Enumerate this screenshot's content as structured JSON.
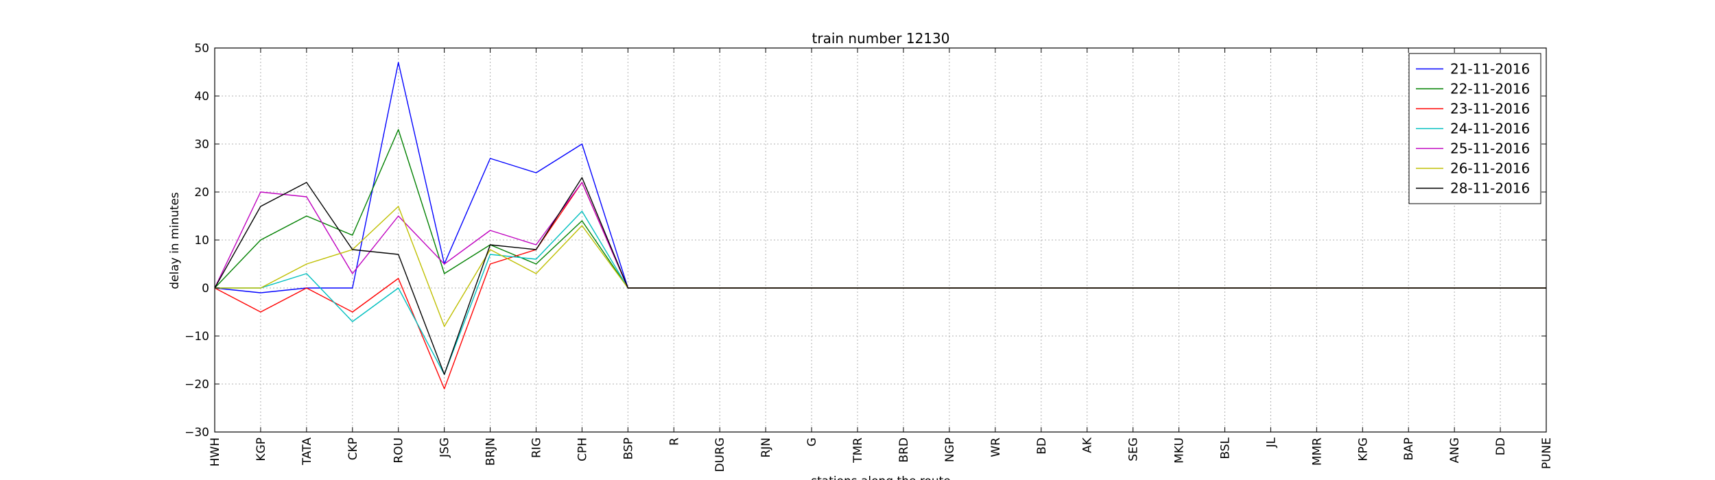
{
  "chart_data": {
    "type": "line",
    "title": "train number 12130",
    "xlabel": "stations along the route",
    "ylabel": "delay in minutes",
    "ylim": [
      -30,
      50
    ],
    "yticks": [
      -30,
      -20,
      -10,
      0,
      10,
      20,
      30,
      40,
      50
    ],
    "grid": true,
    "legend_position": "top-right",
    "categories": [
      "HWH",
      "KGP",
      "TATA",
      "CKP",
      "ROU",
      "JSG",
      "BRJN",
      "RIG",
      "CPH",
      "BSP",
      "R",
      "DURG",
      "RJN",
      "G",
      "TMR",
      "BRD",
      "NGP",
      "WR",
      "BD",
      "AK",
      "SEG",
      "MKU",
      "BSL",
      "JL",
      "MMR",
      "KPG",
      "BAP",
      "ANG",
      "DD",
      "PUNE"
    ],
    "series": [
      {
        "name": "21-11-2016",
        "color": "#0000ff",
        "values": [
          0,
          -1,
          0,
          0,
          47,
          5,
          27,
          24,
          30,
          0,
          0,
          0,
          0,
          0,
          0,
          0,
          0,
          0,
          0,
          0,
          0,
          0,
          0,
          0,
          0,
          0,
          0,
          0,
          0,
          0
        ]
      },
      {
        "name": "22-11-2016",
        "color": "#008000",
        "values": [
          0,
          10,
          15,
          11,
          33,
          3,
          9,
          5,
          14,
          0,
          0,
          0,
          0,
          0,
          0,
          0,
          0,
          0,
          0,
          0,
          0,
          0,
          0,
          0,
          0,
          0,
          0,
          0,
          0,
          0
        ]
      },
      {
        "name": "23-11-2016",
        "color": "#ff0000",
        "values": [
          0,
          -5,
          0,
          -5,
          2,
          -21,
          5,
          8,
          22,
          0,
          0,
          0,
          0,
          0,
          0,
          0,
          0,
          0,
          0,
          0,
          0,
          0,
          0,
          0,
          0,
          0,
          0,
          0,
          0,
          0
        ]
      },
      {
        "name": "24-11-2016",
        "color": "#00bfbf",
        "values": [
          0,
          0,
          3,
          -7,
          0,
          -18,
          7,
          6,
          16,
          0,
          0,
          0,
          0,
          0,
          0,
          0,
          0,
          0,
          0,
          0,
          0,
          0,
          0,
          0,
          0,
          0,
          0,
          0,
          0,
          0
        ]
      },
      {
        "name": "25-11-2016",
        "color": "#bf00bf",
        "values": [
          0,
          20,
          19,
          3,
          15,
          5,
          12,
          9,
          22,
          0,
          0,
          0,
          0,
          0,
          0,
          0,
          0,
          0,
          0,
          0,
          0,
          0,
          0,
          0,
          0,
          0,
          0,
          0,
          0,
          0
        ]
      },
      {
        "name": "26-11-2016",
        "color": "#bfbf00",
        "values": [
          0,
          0,
          5,
          8,
          17,
          -8,
          8,
          3,
          13,
          0,
          0,
          0,
          0,
          0,
          0,
          0,
          0,
          0,
          0,
          0,
          0,
          0,
          0,
          0,
          0,
          0,
          0,
          0,
          0,
          0
        ]
      },
      {
        "name": "28-11-2016",
        "color": "#000000",
        "values": [
          0,
          17,
          22,
          8,
          7,
          -18,
          9,
          8,
          23,
          0,
          0,
          0,
          0,
          0,
          0,
          0,
          0,
          0,
          0,
          0,
          0,
          0,
          0,
          0,
          0,
          0,
          0,
          0,
          0,
          0
        ]
      }
    ]
  }
}
